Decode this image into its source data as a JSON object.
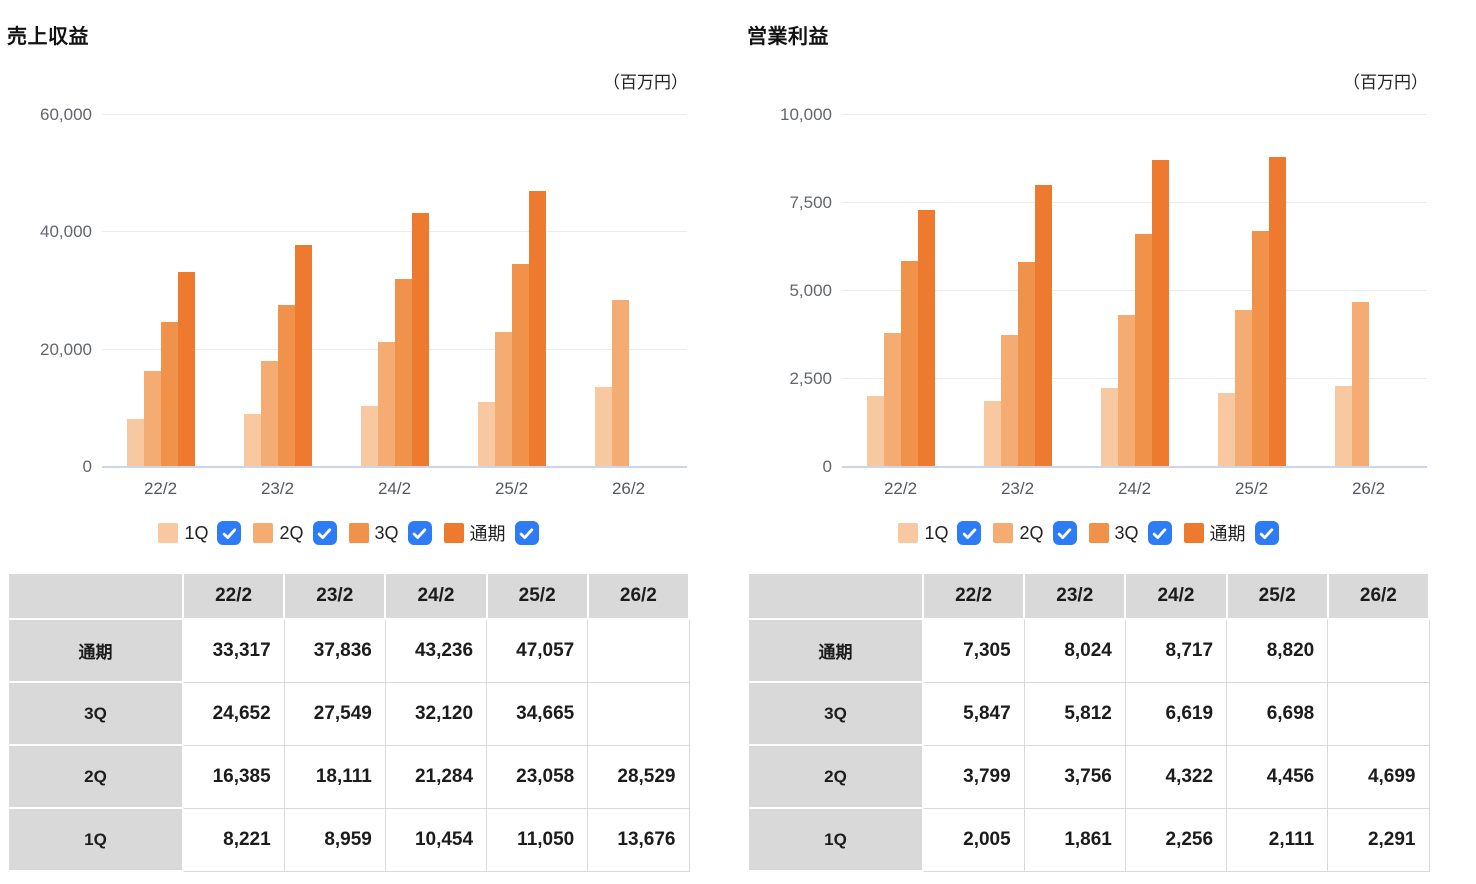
{
  "page": {
    "background": "#FFFFFF"
  },
  "panels": [
    {
      "title": "売上収益",
      "unit_label": "（百万円）"
    },
    {
      "title": "営業利益",
      "unit_label": "（百万円）"
    }
  ],
  "chart_data": [
    {
      "type": "bar",
      "title": "売上収益",
      "unit": "百万円",
      "categories": [
        "22/2",
        "23/2",
        "24/2",
        "25/2",
        "26/2"
      ],
      "series": [
        {
          "name": "1Q",
          "color": "#F8C9A0",
          "values": [
            8221,
            8959,
            10454,
            11050,
            13676
          ]
        },
        {
          "name": "2Q",
          "color": "#F4AC73",
          "values": [
            16385,
            18111,
            21284,
            23058,
            28529
          ]
        },
        {
          "name": "3Q",
          "color": "#F0924A",
          "values": [
            24652,
            27549,
            32120,
            34665,
            null
          ]
        },
        {
          "name": "通期",
          "color": "#EE7A30",
          "values": [
            33317,
            37836,
            43236,
            47057,
            null
          ]
        }
      ],
      "ylim": [
        0,
        60000
      ],
      "yticks": [
        0,
        20000,
        40000,
        60000
      ],
      "grid": true,
      "legend_position": "bottom"
    },
    {
      "type": "bar",
      "title": "営業利益",
      "unit": "百万円",
      "categories": [
        "22/2",
        "23/2",
        "24/2",
        "25/2",
        "26/2"
      ],
      "series": [
        {
          "name": "1Q",
          "color": "#F8C9A0",
          "values": [
            2005,
            1861,
            2256,
            2111,
            2291
          ]
        },
        {
          "name": "2Q",
          "color": "#F4AC73",
          "values": [
            3799,
            3756,
            4322,
            4456,
            4699
          ]
        },
        {
          "name": "3Q",
          "color": "#F0924A",
          "values": [
            5847,
            5812,
            6619,
            6698,
            null
          ]
        },
        {
          "name": "通期",
          "color": "#EE7A30",
          "values": [
            7305,
            8024,
            8717,
            8820,
            null
          ]
        }
      ],
      "ylim": [
        0,
        10000
      ],
      "yticks": [
        0,
        2500,
        5000,
        7500,
        10000
      ],
      "grid": true,
      "legend_position": "bottom"
    }
  ],
  "legend": {
    "labels": [
      "1Q",
      "2Q",
      "3Q",
      "通期"
    ],
    "checkbox_checked": true,
    "checkbox_color": "#2E7CF5",
    "check_color": "#FFFFFF"
  },
  "table": {
    "corner_label": "",
    "row_order": [
      "通期",
      "3Q",
      "2Q",
      "1Q"
    ]
  },
  "colors": {
    "grid": "#E9EBEF",
    "baseline": "#CCD5EA",
    "tick_label": "#63676C",
    "axis_label": "#55595E",
    "title": "#111111",
    "table_header_bg": "#D9D9D9",
    "table_border": "#D9D9D9",
    "text": "#1C1C1C"
  }
}
